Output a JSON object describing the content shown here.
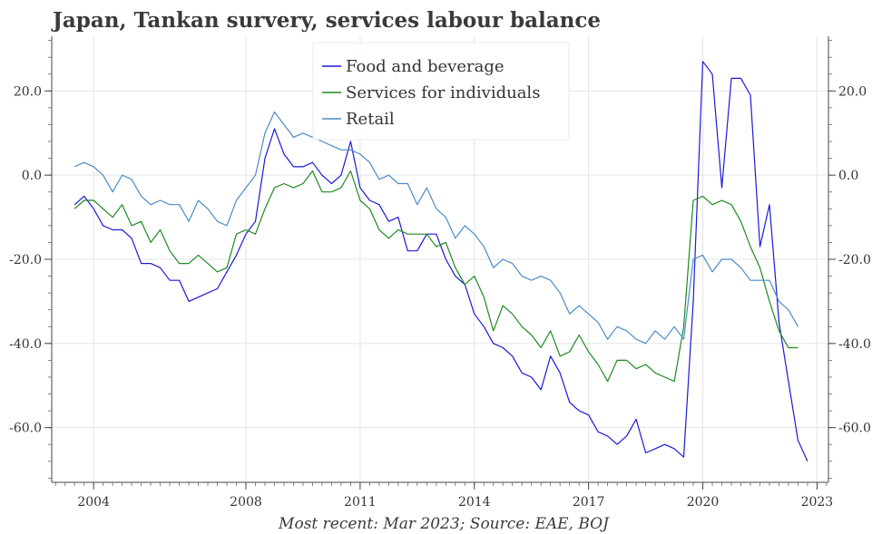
{
  "chart_data": {
    "type": "line",
    "title": "Japan, Tankan survery, services labour balance",
    "subtitle": "",
    "xlabel": "",
    "ylabel": "",
    "note": "Most recent: Mar 2023; Source: EAE, BOJ",
    "legend_position": "top-center",
    "grid": true,
    "ylim": [
      -73,
      33
    ],
    "xlim": [
      2002.9,
      2023.3
    ],
    "y_ticks": [
      20,
      0,
      -20,
      -40,
      -60
    ],
    "y_tick_labels": [
      "20.0",
      "0.0",
      "-20.0",
      "-40.0",
      "-60.0"
    ],
    "x_ticks": [
      2004,
      2008,
      2011,
      2014,
      2017,
      2020,
      2023
    ],
    "x_tick_labels": [
      "2004",
      "2008",
      "2011",
      "2014",
      "2017",
      "2020",
      "2023"
    ],
    "series": [
      {
        "name": "Food and beverage",
        "color": "#1a1adb",
        "values": [
          -7,
          -5,
          -8,
          -12,
          -13,
          -13,
          -15,
          -21,
          -21,
          -22,
          -25,
          -25,
          -30,
          -29,
          -28,
          -27,
          -23,
          -19,
          -14,
          -11,
          4,
          11,
          5,
          2,
          2,
          3,
          0,
          -2,
          0,
          8,
          -3,
          -6,
          -7,
          -11,
          -10,
          -18,
          -18,
          -14,
          -14,
          -20,
          -24,
          -26,
          -33,
          -36,
          -40,
          -41,
          -43,
          -47,
          -48,
          -51,
          -43,
          -47,
          -54,
          -56,
          -57,
          -61,
          -62,
          -64,
          -62,
          -58,
          -66,
          -65,
          -64,
          -65,
          -67,
          -30,
          27,
          24,
          -3,
          23,
          23,
          19,
          -17,
          -7,
          -35,
          -49,
          -63,
          -68
        ]
      },
      {
        "name": "Services for individuals",
        "color": "#1f8a1f",
        "values": [
          -8,
          -6,
          -6,
          -8,
          -10,
          -7,
          -12,
          -11,
          -16,
          -13,
          -18,
          -21,
          -21,
          -19,
          -21,
          -23,
          -22,
          -14,
          -13,
          -14,
          -8,
          -3,
          -2,
          -3,
          -2,
          1,
          -4,
          -4,
          -3,
          1,
          -6,
          -8,
          -13,
          -15,
          -13,
          -14,
          -14,
          -14,
          -17,
          -16,
          -22,
          -26,
          -24,
          -29,
          -37,
          -31,
          -33,
          -36,
          -38,
          -41,
          -37,
          -43,
          -42,
          -38,
          -42,
          -45,
          -49,
          -44,
          -44,
          -46,
          -45,
          -47,
          -48,
          -49,
          -36,
          -6,
          -5,
          -7,
          -6,
          -7,
          -11,
          -17,
          -22,
          -30,
          -37,
          -41,
          -41
        ]
      },
      {
        "name": "Retail",
        "color": "#4a8cc7",
        "values": [
          2,
          3,
          2,
          0,
          -4,
          0,
          -1,
          -5,
          -7,
          -6,
          -7,
          -7,
          -11,
          -6,
          -8,
          -11,
          -12,
          -6,
          -3,
          0,
          10,
          15,
          12,
          9,
          10,
          9,
          8,
          7,
          6,
          6,
          5,
          3,
          -1,
          0,
          -2,
          -2,
          -7,
          -3,
          -8,
          -10,
          -15,
          -12,
          -14,
          -17,
          -22,
          -20,
          -21,
          -24,
          -25,
          -24,
          -25,
          -28,
          -33,
          -31,
          -33,
          -35,
          -39,
          -36,
          -37,
          -39,
          -40,
          -37,
          -39,
          -36,
          -39,
          -20,
          -19,
          -23,
          -20,
          -20,
          -22,
          -25,
          -25,
          -25,
          -30,
          -32,
          -36
        ]
      }
    ]
  }
}
